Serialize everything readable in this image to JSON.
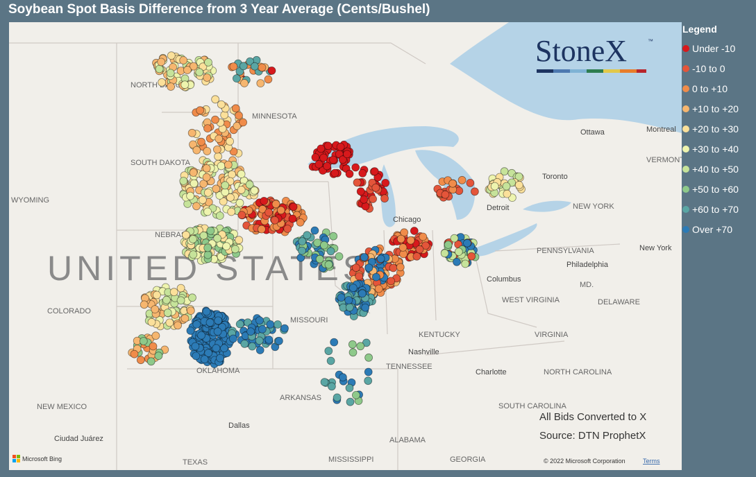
{
  "title": "Soybean Spot Basis Difference from 3 Year Average (Cents/Bushel)",
  "legend": {
    "title": "Legend",
    "items": [
      {
        "label": "Under -10",
        "color": "#d7191c"
      },
      {
        "label": "-10 to 0",
        "color": "#e4553a"
      },
      {
        "label": "0 to +10",
        "color": "#f08c4a"
      },
      {
        "label": "+10 to +20",
        "color": "#f6b66f"
      },
      {
        "label": "+20 to +30",
        "color": "#fbe09a"
      },
      {
        "label": "+30 to +40",
        "color": "#eef4ae"
      },
      {
        "label": "+40 to +50",
        "color": "#c6e39a"
      },
      {
        "label": "+50 to +60",
        "color": "#8ec98a"
      },
      {
        "label": "+60 to +70",
        "color": "#5aa6a4"
      },
      {
        "label": "Over +70",
        "color": "#2c7bb6"
      }
    ]
  },
  "logo": {
    "name": "StoneX",
    "mark": "™"
  },
  "notes": [
    "All Bids Converted to X",
    "Source: DTN ProphetX"
  ],
  "attribution": {
    "provider": "Microsoft Bing",
    "copyright": "© 2022 Microsoft Corporation",
    "terms": "Terms"
  },
  "map_labels": [
    "UNITED STATES",
    "NORTH DAKOTA",
    "MINNESOTA",
    "SOUTH DAKOTA",
    "WYOMING",
    "NEBRASKA",
    "COLORADO",
    "MISSOURI",
    "KENTUCKY",
    "TENNESSEE",
    "OKLAHOMA",
    "ARKANSAS",
    "NEW MEXICO",
    "TEXAS",
    "MISSISSIPPI",
    "ALABAMA",
    "GEORGIA",
    "SOUTH CAROLINA",
    "NORTH CAROLINA",
    "VIRGINIA",
    "WEST VIRGINIA",
    "MD.",
    "DELAWARE",
    "PENNSYLVANIA",
    "NEW YORK",
    "VERMONT",
    "Ottawa",
    "Montreal",
    "Toronto",
    "Detroit",
    "Chicago",
    "Columbus",
    "Philadelphia",
    "New York",
    "Nashville",
    "Charlotte",
    "Dallas",
    "Ciudad Juárez"
  ]
}
